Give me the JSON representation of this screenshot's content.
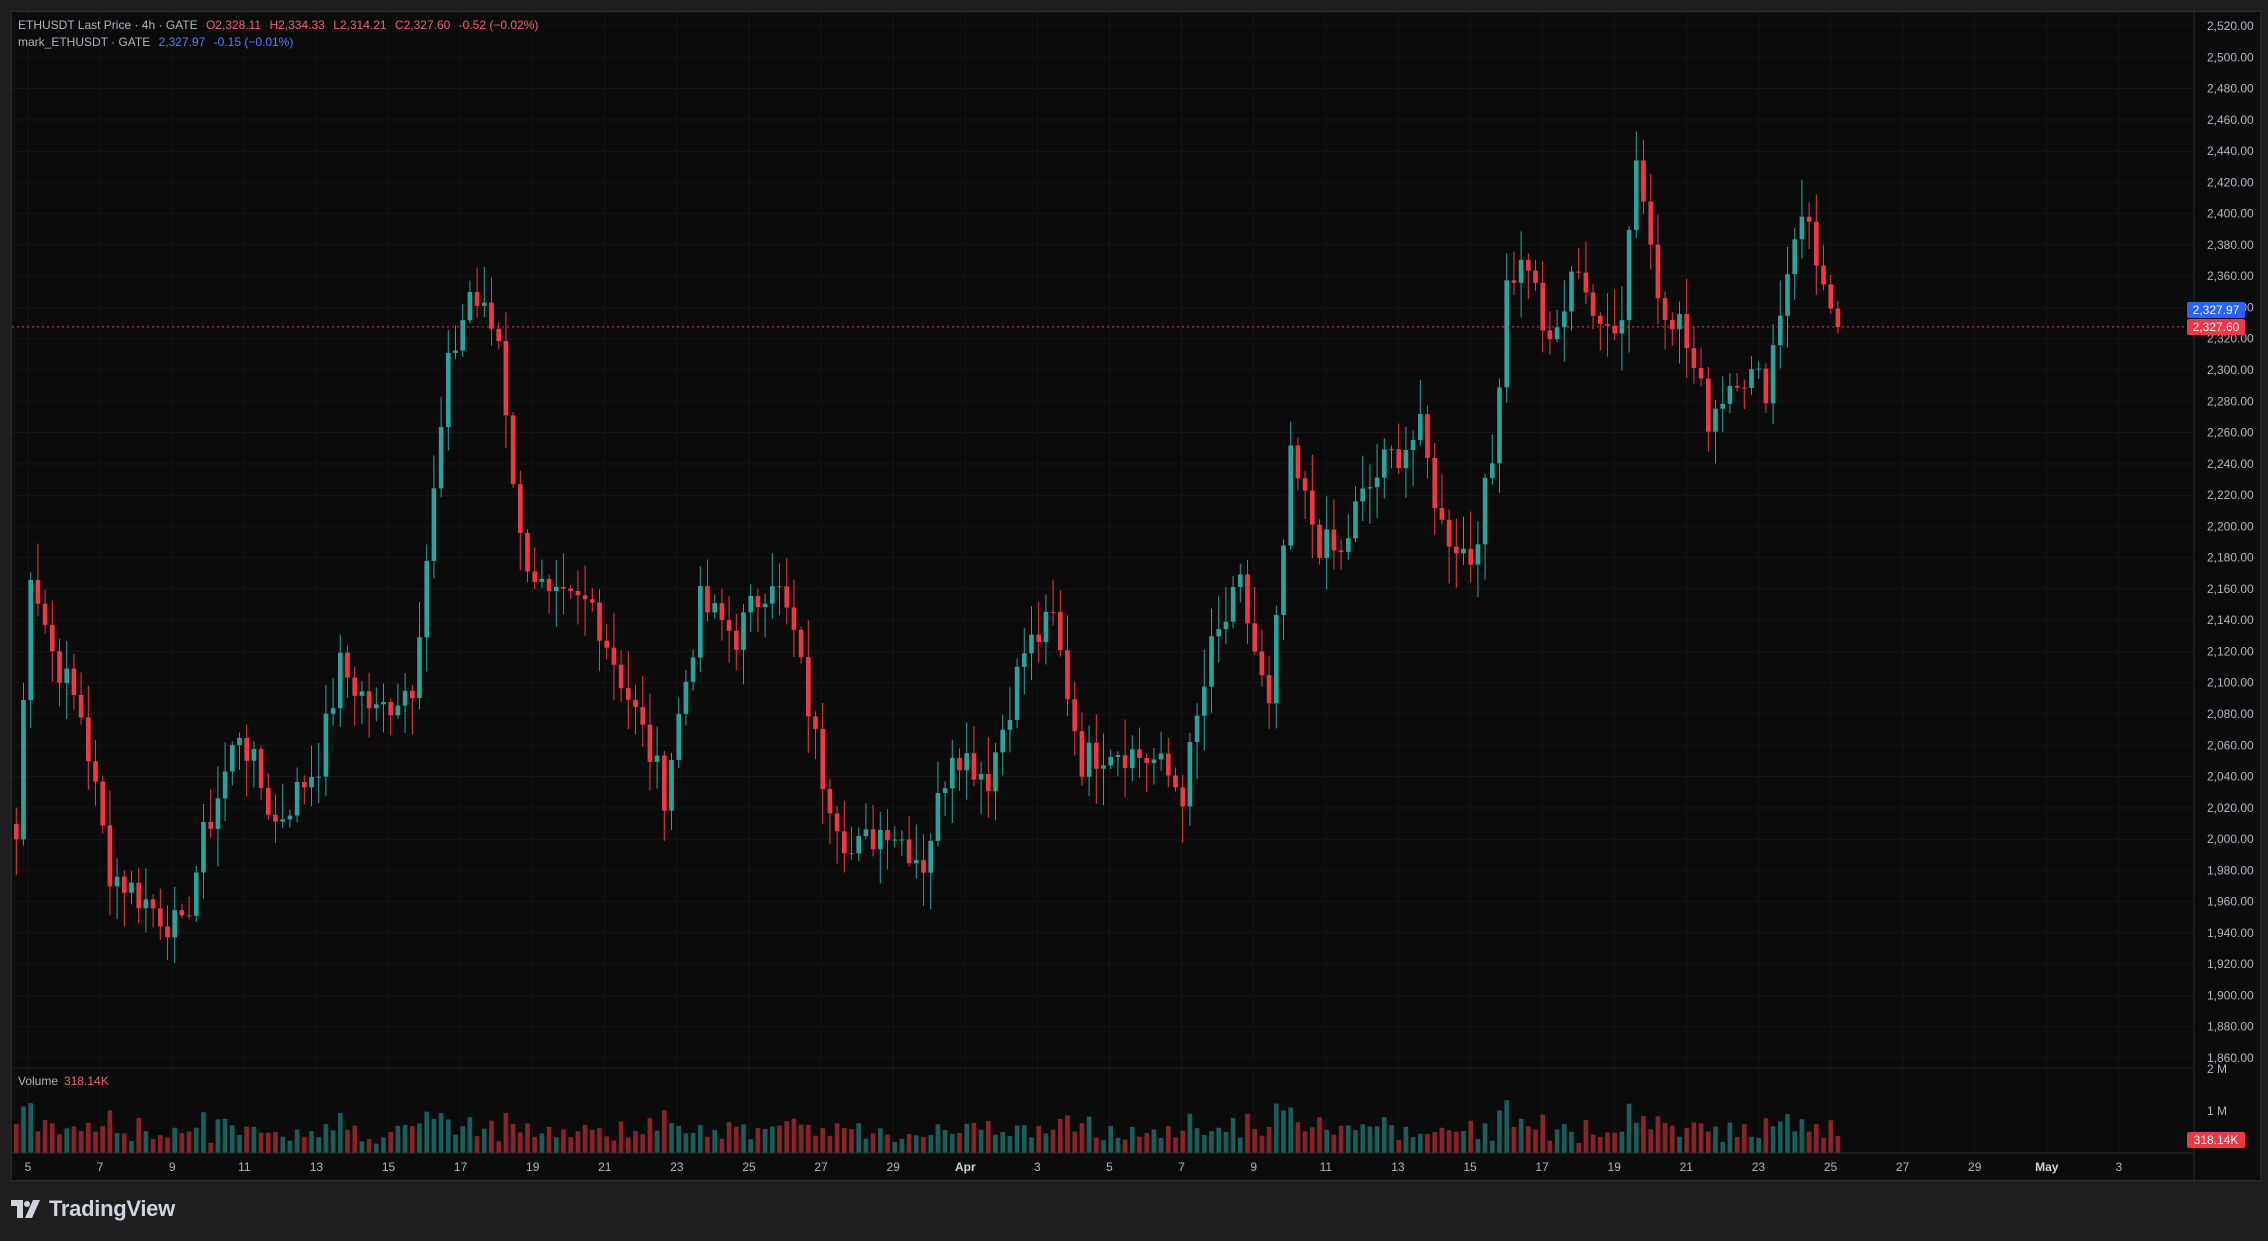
{
  "legend": {
    "main": {
      "symbol": "ETHUSDT Last Price · 4h · GATE",
      "open": "O2,328.11",
      "high": "H2,334.33",
      "low": "L2,314.21",
      "close": "C2,327.60",
      "change": "-0.52 (−0.02%)"
    },
    "mark": {
      "symbol": "mark_ETHUSDT · GATE",
      "price": "2,327.97",
      "change": "-0.15 (−0.01%)"
    },
    "volume": {
      "label": "Volume",
      "value": "318.14K"
    }
  },
  "price_axis": {
    "labels": [
      "2,520.00",
      "2,500.00",
      "2,480.00",
      "2,460.00",
      "2,440.00",
      "2,420.00",
      "2,400.00",
      "2,380.00",
      "2,360.00",
      "2,340.00",
      "2,320.00",
      "2,300.00",
      "2,280.00",
      "2,260.00",
      "2,240.00",
      "2,220.00",
      "2,200.00",
      "2,180.00",
      "2,160.00",
      "2,140.00",
      "2,120.00",
      "2,100.00",
      "2,080.00",
      "2,060.00",
      "2,040.00",
      "2,020.00",
      "2,000.00",
      "1,980.00",
      "1,960.00",
      "1,940.00",
      "1,920.00",
      "1,900.00",
      "1,880.00",
      "1,860.00"
    ],
    "mark_tag": "2,327.97",
    "last_tag": "2,327.60"
  },
  "volume_axis": {
    "labels": [
      "2 M",
      "1 M"
    ],
    "tag": "318.14K"
  },
  "time_axis": {
    "labels": [
      "5",
      "7",
      "9",
      "11",
      "13",
      "15",
      "17",
      "19",
      "21",
      "23",
      "25",
      "27",
      "29",
      "Apr",
      "3",
      "5",
      "7",
      "9",
      "11",
      "13",
      "15",
      "17",
      "19",
      "21",
      "23",
      "25",
      "27",
      "29",
      "May",
      "3"
    ],
    "bold": [
      "Apr",
      "May"
    ]
  },
  "colors": {
    "up": "#26a69a",
    "down": "#f23645",
    "mark_tag": "#2962ff",
    "last_tag": "#f23645",
    "background": "#0b0b0b"
  },
  "brand": {
    "name": "TradingView",
    "icon": "tradingview-logo-icon"
  },
  "chart_data": {
    "type": "candlestick",
    "symbol": "ETHUSDT",
    "interval": "4h",
    "ylim": [
      1850,
      2525
    ],
    "last_price": 2327.6,
    "mark_price": 2327.97,
    "anchors": [
      [
        0,
        2000
      ],
      [
        2,
        2175
      ],
      [
        5,
        2120
      ],
      [
        9,
        2080
      ],
      [
        13,
        1980
      ],
      [
        18,
        1960
      ],
      [
        23,
        1940
      ],
      [
        26,
        2000
      ],
      [
        31,
        2070
      ],
      [
        36,
        2010
      ],
      [
        42,
        2050
      ],
      [
        45,
        2110
      ],
      [
        50,
        2080
      ],
      [
        55,
        2100
      ],
      [
        60,
        2300
      ],
      [
        63,
        2350
      ],
      [
        67,
        2320
      ],
      [
        70,
        2190
      ],
      [
        74,
        2150
      ],
      [
        80,
        2150
      ],
      [
        86,
        2080
      ],
      [
        90,
        2030
      ],
      [
        95,
        2150
      ],
      [
        100,
        2130
      ],
      [
        105,
        2170
      ],
      [
        108,
        2130
      ],
      [
        112,
        2040
      ],
      [
        116,
        1990
      ],
      [
        121,
        2010
      ],
      [
        126,
        1985
      ],
      [
        130,
        2060
      ],
      [
        135,
        2040
      ],
      [
        140,
        2120
      ],
      [
        144,
        2140
      ],
      [
        148,
        2050
      ],
      [
        152,
        2060
      ],
      [
        158,
        2050
      ],
      [
        162,
        2030
      ],
      [
        166,
        2120
      ],
      [
        170,
        2160
      ],
      [
        174,
        2080
      ],
      [
        177,
        2240
      ],
      [
        181,
        2190
      ],
      [
        184,
        2180
      ],
      [
        186,
        2210
      ],
      [
        190,
        2240
      ],
      [
        195,
        2260
      ],
      [
        198,
        2200
      ],
      [
        202,
        2180
      ],
      [
        205,
        2240
      ],
      [
        207,
        2360
      ],
      [
        210,
        2370
      ],
      [
        213,
        2310
      ],
      [
        217,
        2370
      ],
      [
        220,
        2320
      ],
      [
        223,
        2340
      ],
      [
        225,
        2440
      ],
      [
        228,
        2350
      ],
      [
        231,
        2330
      ],
      [
        235,
        2270
      ],
      [
        239,
        2300
      ],
      [
        243,
        2290
      ],
      [
        247,
        2390
      ],
      [
        249,
        2395
      ],
      [
        252,
        2330
      ],
      [
        253,
        2328
      ]
    ],
    "volume_axis_max": 2000000,
    "volume_last": 318140
  }
}
